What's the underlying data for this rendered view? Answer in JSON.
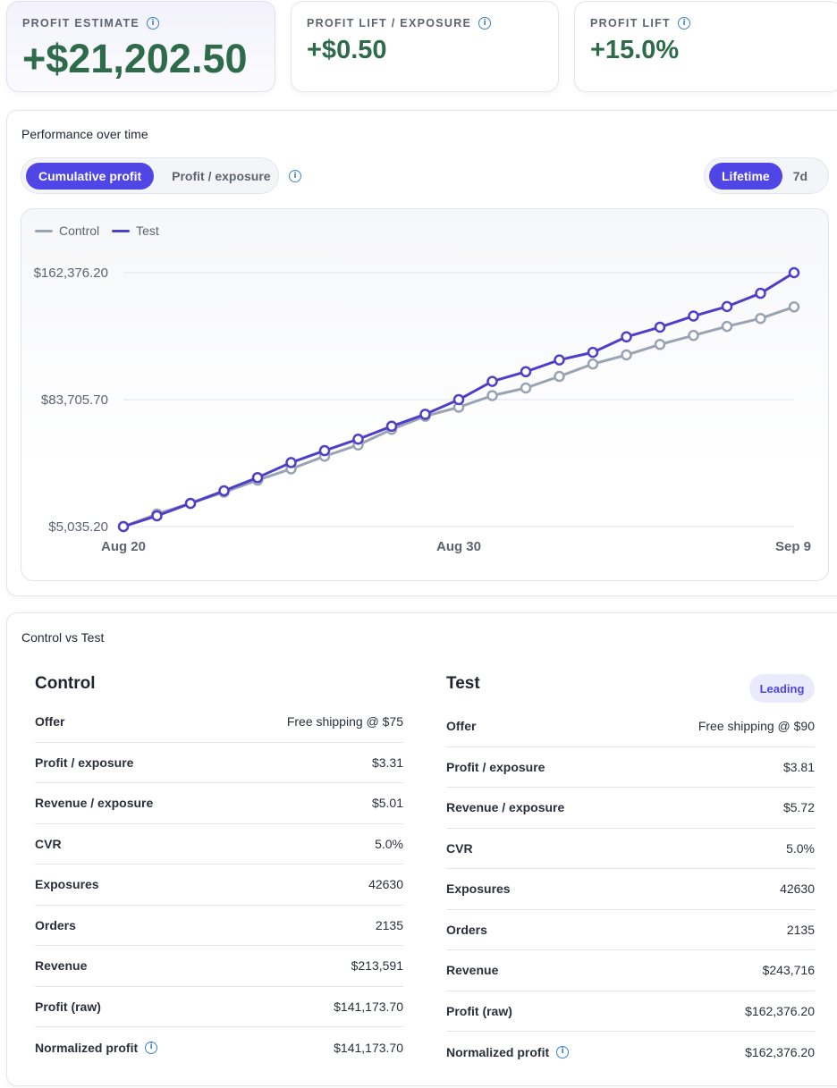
{
  "stats": [
    {
      "label": "PROFIT ESTIMATE",
      "value": "+$21,202.50"
    },
    {
      "label": "PROFIT LIFT / EXPOSURE",
      "value": "+$0.50"
    },
    {
      "label": "PROFIT LIFT",
      "value": "+15.0%"
    }
  ],
  "performance": {
    "title": "Performance over time",
    "metric_toggle": [
      "Cumulative profit",
      "Profit / exposure"
    ],
    "range_toggle": [
      "Lifetime",
      "7d"
    ]
  },
  "chart_data": {
    "type": "line",
    "title": "",
    "xlabel": "",
    "ylabel": "",
    "x_tick_labels": [
      "Aug 20",
      "Aug 30",
      "Sep 9"
    ],
    "y_tick_labels": [
      "$162,376.20",
      "$83,705.70",
      "$5,035.20"
    ],
    "x": [
      "Aug 20",
      "Aug 21",
      "Aug 22",
      "Aug 23",
      "Aug 24",
      "Aug 25",
      "Aug 26",
      "Aug 27",
      "Aug 28",
      "Aug 29",
      "Aug 30",
      "Aug 31",
      "Sep 1",
      "Sep 2",
      "Sep 3",
      "Sep 4",
      "Sep 5",
      "Sep 6",
      "Sep 7",
      "Sep 8",
      "Sep 9"
    ],
    "ylim": [
      5035.2,
      162376.2
    ],
    "series": [
      {
        "name": "Control",
        "color": "#9aa3b2",
        "values": [
          5035.2,
          12800,
          19500,
          26300,
          33800,
          40800,
          48600,
          55600,
          65300,
          73400,
          79000,
          86200,
          90900,
          98100,
          105800,
          111400,
          117900,
          123500,
          129100,
          134000,
          141173.7
        ]
      },
      {
        "name": "Test",
        "color": "#4f3fc8",
        "values": [
          5035.2,
          11700,
          19400,
          27200,
          35400,
          44700,
          52100,
          59200,
          67200,
          74600,
          83700,
          95000,
          101000,
          108300,
          113000,
          122600,
          128600,
          135500,
          141400,
          149600,
          162376.2
        ]
      }
    ],
    "grid": true,
    "legend": "top-left"
  },
  "comparison": {
    "title": "Control vs Test",
    "leading_badge": "Leading",
    "control": {
      "title": "Control",
      "rows": [
        {
          "key": "Offer",
          "value": "Free shipping @ $75"
        },
        {
          "key": "Profit / exposure",
          "value": "$3.31"
        },
        {
          "key": "Revenue / exposure",
          "value": "$5.01"
        },
        {
          "key": "CVR",
          "value": "5.0%"
        },
        {
          "key": "Exposures",
          "value": "42630"
        },
        {
          "key": "Orders",
          "value": "2135"
        },
        {
          "key": "Revenue",
          "value": "$213,591"
        },
        {
          "key": "Profit (raw)",
          "value": "$141,173.70"
        },
        {
          "key": "Normalized profit",
          "value": "$141,173.70",
          "info": true
        }
      ]
    },
    "test": {
      "title": "Test",
      "rows": [
        {
          "key": "Offer",
          "value": "Free shipping @ $90"
        },
        {
          "key": "Profit / exposure",
          "value": "$3.81"
        },
        {
          "key": "Revenue / exposure",
          "value": "$5.72"
        },
        {
          "key": "CVR",
          "value": "5.0%"
        },
        {
          "key": "Exposures",
          "value": "42630"
        },
        {
          "key": "Orders",
          "value": "2135"
        },
        {
          "key": "Revenue",
          "value": "$243,716"
        },
        {
          "key": "Profit (raw)",
          "value": "$162,376.20"
        },
        {
          "key": "Normalized profit",
          "value": "$162,376.20",
          "info": true
        }
      ]
    }
  },
  "icons": {
    "info": "info-icon"
  },
  "colors": {
    "accent": "#4f46e5",
    "positive": "#2e6b4a",
    "control_line": "#9aa3b2",
    "test_line": "#4f3fc8"
  }
}
